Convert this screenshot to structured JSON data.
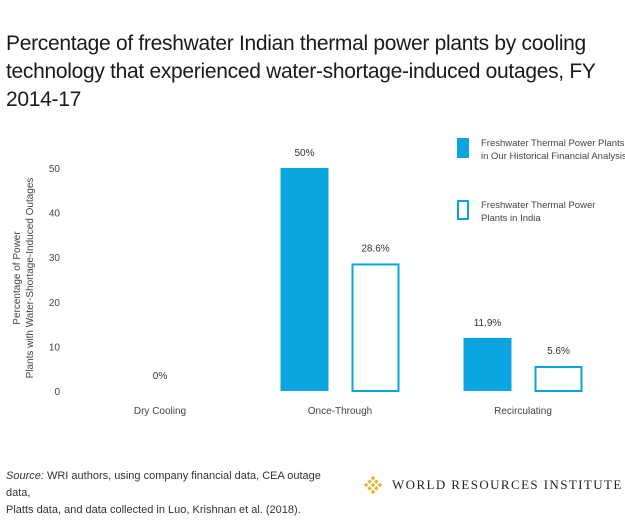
{
  "title_lines": [
    "Percentage of freshwater Indian thermal power plants by cooling",
    "technology that experienced water-shortage-induced outages, FY 2014-17"
  ],
  "source": {
    "label": "Source:",
    "lines": [
      " WRI authors, using company financial data, CEA outage data,",
      "Platts data, and data collected in Luo, Krishnan et al. (2018)."
    ]
  },
  "brand": {
    "name": "WORLD RESOURCES INSTITUTE",
    "icon": "wri-lattice-logo-icon",
    "color": "#e8b42a"
  },
  "chart_data": {
    "type": "bar",
    "categories": [
      "Dry Cooling",
      "Once-Through",
      "Recirculating"
    ],
    "series": [
      {
        "name": "Freshwater Thermal Power Plants in Our Historical Financial Analysis",
        "legend_lines": [
          "Freshwater Thermal Power Plants",
          "in Our Historical Financial Analysis"
        ],
        "style": "filled",
        "color": "#0aa4e0",
        "values": [
          0,
          50,
          11.9
        ],
        "labels": [
          "0%",
          "50%",
          "11.9%"
        ]
      },
      {
        "name": "Freshwater Thermal Power Plants in India",
        "legend_lines": [
          "Freshwater Thermal Power",
          "Plants in India"
        ],
        "style": "outline",
        "color": "#0aa4e0",
        "values": [
          0,
          28.6,
          5.6
        ],
        "labels": [
          "",
          "28.6%",
          "5.6%"
        ]
      }
    ],
    "ylabel_lines": [
      "Percentage of Power",
      "Plants with Water-Shortage-Induced Outages"
    ],
    "yticks": [
      0,
      10,
      20,
      30,
      40,
      50
    ],
    "ylim": [
      0,
      55
    ],
    "grid": false,
    "legend": "top-right"
  }
}
